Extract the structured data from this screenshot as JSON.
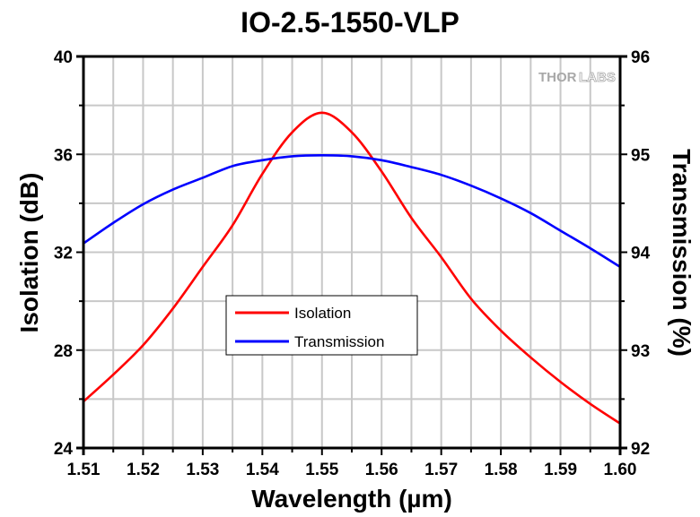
{
  "chart_data": {
    "type": "line",
    "title": "IO-2.5-1550-VLP",
    "xlabel": "Wavelength (µm)",
    "ylabel": "Isolation (dB)",
    "y2label": "Transmission (%)",
    "xlim": [
      1.51,
      1.6
    ],
    "ylim": [
      24,
      40
    ],
    "y2lim": [
      92,
      96
    ],
    "xticks": [
      "1.51",
      "1.52",
      "1.53",
      "1.54",
      "1.55",
      "1.56",
      "1.57",
      "1.58",
      "1.59",
      "1.60"
    ],
    "xtick_values": [
      1.51,
      1.52,
      1.53,
      1.54,
      1.55,
      1.56,
      1.57,
      1.58,
      1.59,
      1.6
    ],
    "yticks": [
      "24",
      "28",
      "32",
      "36",
      "40"
    ],
    "ytick_values": [
      24,
      28,
      32,
      36,
      40
    ],
    "y2ticks": [
      "92",
      "93",
      "94",
      "95",
      "96"
    ],
    "y2tick_values": [
      92,
      93,
      94,
      95,
      96
    ],
    "grid": true,
    "legend_position": "center-left",
    "watermark": {
      "filled": "THOR",
      "outlined": "LABS"
    },
    "x": [
      1.51,
      1.515,
      1.52,
      1.525,
      1.53,
      1.535,
      1.54,
      1.545,
      1.55,
      1.555,
      1.56,
      1.565,
      1.57,
      1.575,
      1.58,
      1.585,
      1.59,
      1.595,
      1.6
    ],
    "series": [
      {
        "name": "Isolation",
        "axis": "left",
        "color": "#ff0000",
        "values": [
          25.9,
          27.0,
          28.2,
          29.7,
          31.4,
          33.1,
          35.2,
          36.9,
          37.7,
          36.9,
          35.3,
          33.4,
          31.8,
          30.1,
          28.8,
          27.7,
          26.7,
          25.8,
          25.0
        ]
      },
      {
        "name": "Transmission",
        "axis": "right",
        "color": "#0000ff",
        "values": [
          94.09,
          94.3,
          94.49,
          94.64,
          94.76,
          94.88,
          94.94,
          94.98,
          94.99,
          94.98,
          94.94,
          94.87,
          94.79,
          94.68,
          94.55,
          94.4,
          94.22,
          94.04,
          93.85
        ]
      }
    ]
  }
}
